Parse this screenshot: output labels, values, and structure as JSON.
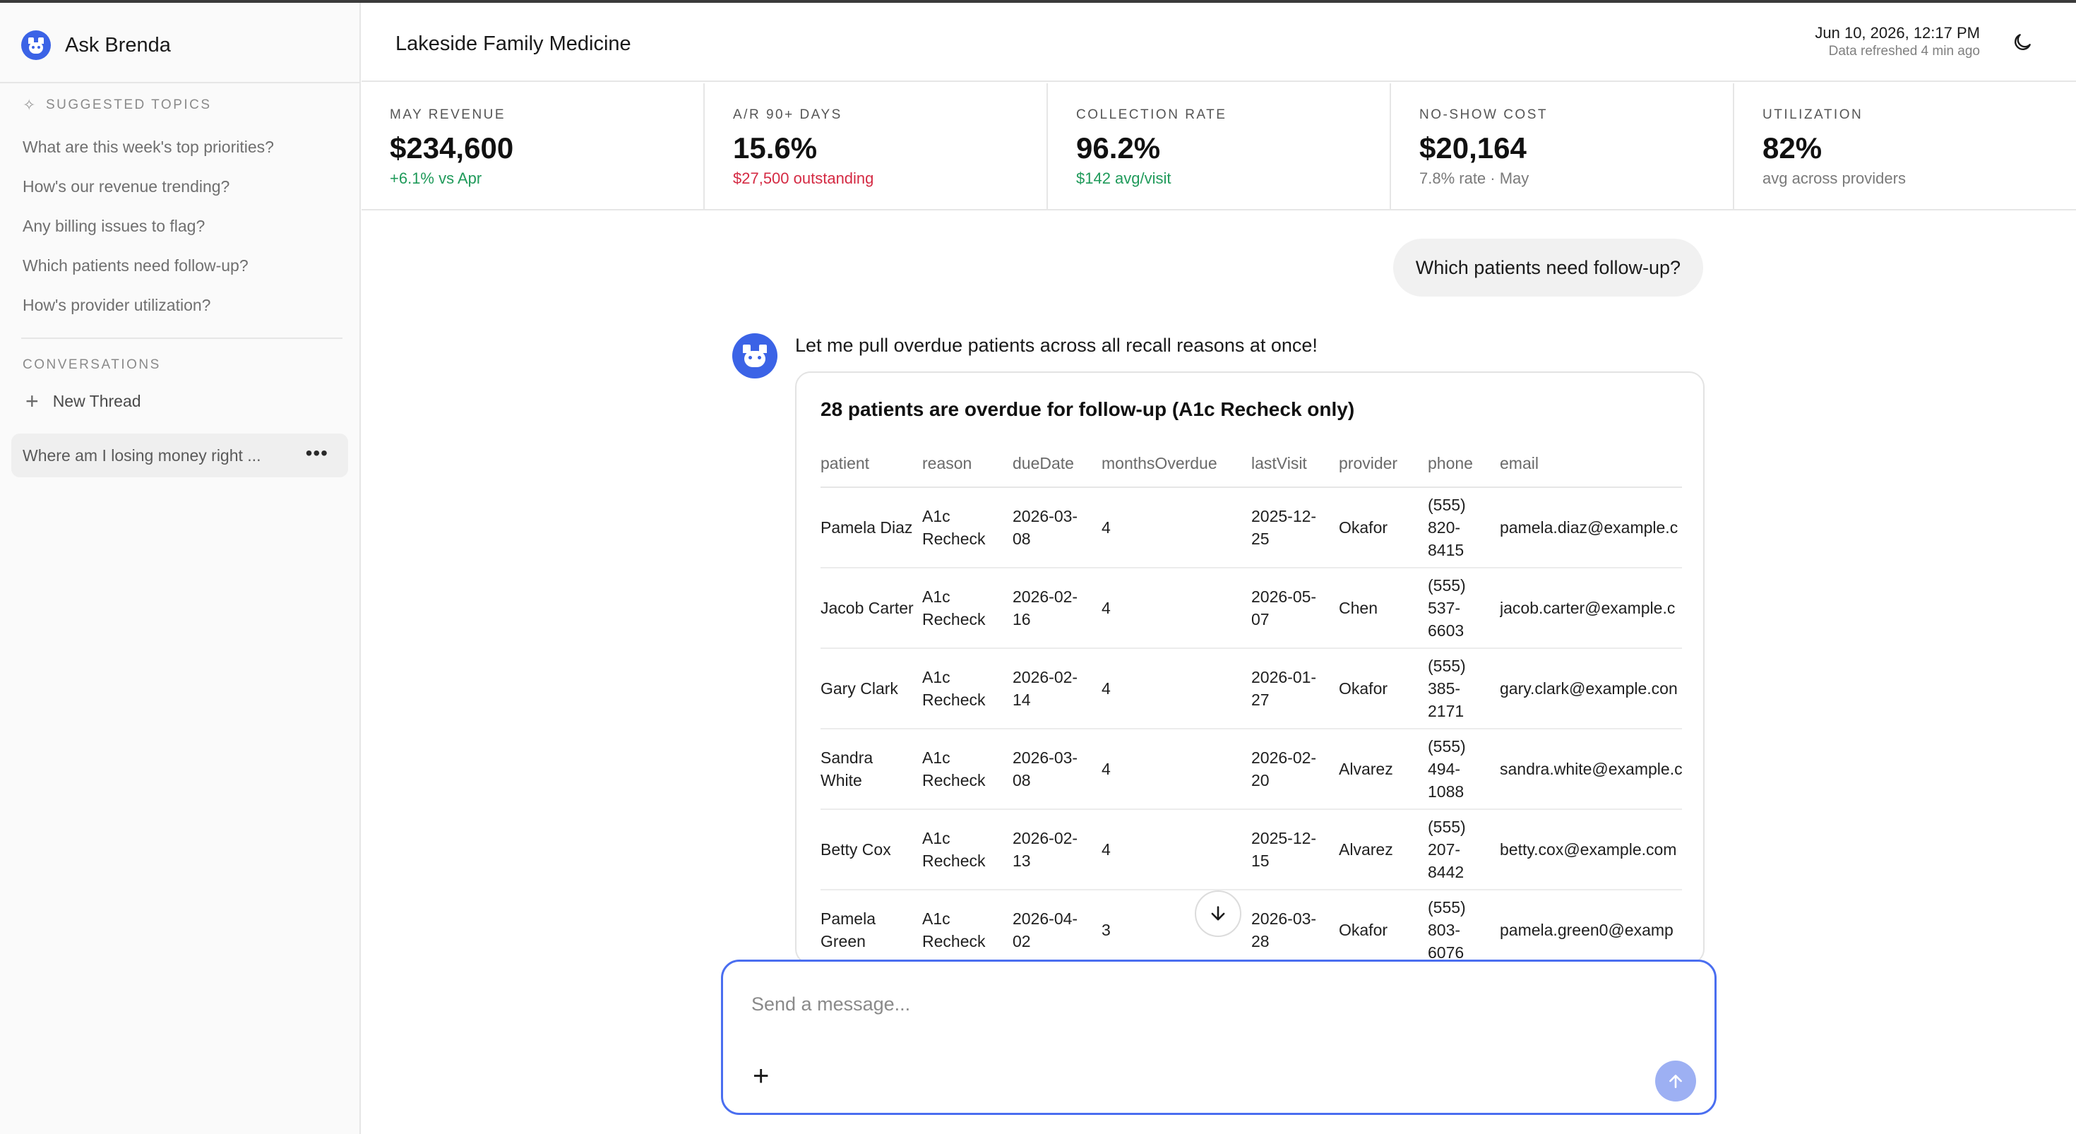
{
  "sidebar": {
    "brand": "Ask Brenda",
    "suggested_label": "SUGGESTED TOPICS",
    "topics": [
      "What are this week's top priorities?",
      "How's our revenue trending?",
      "Any billing issues to flag?",
      "Which patients need follow-up?",
      "How's provider utilization?"
    ],
    "conversations_label": "CONVERSATIONS",
    "new_thread": "New Thread",
    "conversation": "Where am I losing money right ...",
    "menu_glyph": "•••"
  },
  "header": {
    "clinic": "Lakeside Family Medicine",
    "datetime": "Jun 10, 2026, 12:17 PM",
    "refreshed": "Data refreshed 4 min ago"
  },
  "stats": [
    {
      "label": "MAY REVENUE",
      "value": "$234,600",
      "sub": "+6.1% vs Apr"
    },
    {
      "label": "A/R 90+ DAYS",
      "value": "15.6%",
      "sub": "$27,500 outstanding"
    },
    {
      "label": "COLLECTION RATE",
      "value": "96.2%",
      "sub": "$142 avg/visit"
    },
    {
      "label": "NO-SHOW COST",
      "value": "$20,164",
      "sub": "7.8% rate · May"
    },
    {
      "label": "UTILIZATION",
      "value": "82%",
      "sub": "avg across providers"
    }
  ],
  "colors": {
    "accent": "#3b63e6",
    "positive": "#1f9a5a",
    "negative": "#d42a43"
  },
  "chat": {
    "user_message": "Which patients need follow-up?",
    "assistant_intro": "Let me pull overdue patients across all recall reasons at once!",
    "card_title": "28 patients are overdue for follow-up (A1c Recheck only)",
    "columns": {
      "patient": "patient",
      "reason": "reason",
      "dueDate": "dueDate",
      "monthsOverdue": "monthsOverdue",
      "lastVisit": "lastVisit",
      "provider": "provider",
      "phone": "phone",
      "email": "email"
    },
    "rows": [
      {
        "patient": "Pamela Diaz",
        "reason": "A1c Recheck",
        "dueDate": "2026-03-08",
        "monthsOverdue": "4",
        "lastVisit": "2025-12-25",
        "provider": "Okafor",
        "phone": "(555) 820-8415",
        "email": "pamela.diaz@example.c"
      },
      {
        "patient": "Jacob Carter",
        "reason": "A1c Recheck",
        "dueDate": "2026-02-16",
        "monthsOverdue": "4",
        "lastVisit": "2026-05-07",
        "provider": "Chen",
        "phone": "(555) 537-6603",
        "email": "jacob.carter@example.c"
      },
      {
        "patient": "Gary Clark",
        "reason": "A1c Recheck",
        "dueDate": "2026-02-14",
        "monthsOverdue": "4",
        "lastVisit": "2026-01-27",
        "provider": "Okafor",
        "phone": "(555) 385-2171",
        "email": "gary.clark@example.con"
      },
      {
        "patient": "Sandra White",
        "reason": "A1c Recheck",
        "dueDate": "2026-03-08",
        "monthsOverdue": "4",
        "lastVisit": "2026-02-20",
        "provider": "Alvarez",
        "phone": "(555) 494-1088",
        "email": "sandra.white@example.c"
      },
      {
        "patient": "Betty Cox",
        "reason": "A1c Recheck",
        "dueDate": "2026-02-13",
        "monthsOverdue": "4",
        "lastVisit": "2025-12-15",
        "provider": "Alvarez",
        "phone": "(555) 207-8442",
        "email": "betty.cox@example.com"
      },
      {
        "patient": "Pamela Green",
        "reason": "A1c Recheck",
        "dueDate": "2026-04-02",
        "monthsOverdue": "3",
        "lastVisit": "2026-03-28",
        "provider": "Okafor",
        "phone": "(555) 803-6076",
        "email": "pamela.green0@examp"
      }
    ]
  },
  "composer": {
    "placeholder": "Send a message...",
    "attach_glyph": "+"
  }
}
